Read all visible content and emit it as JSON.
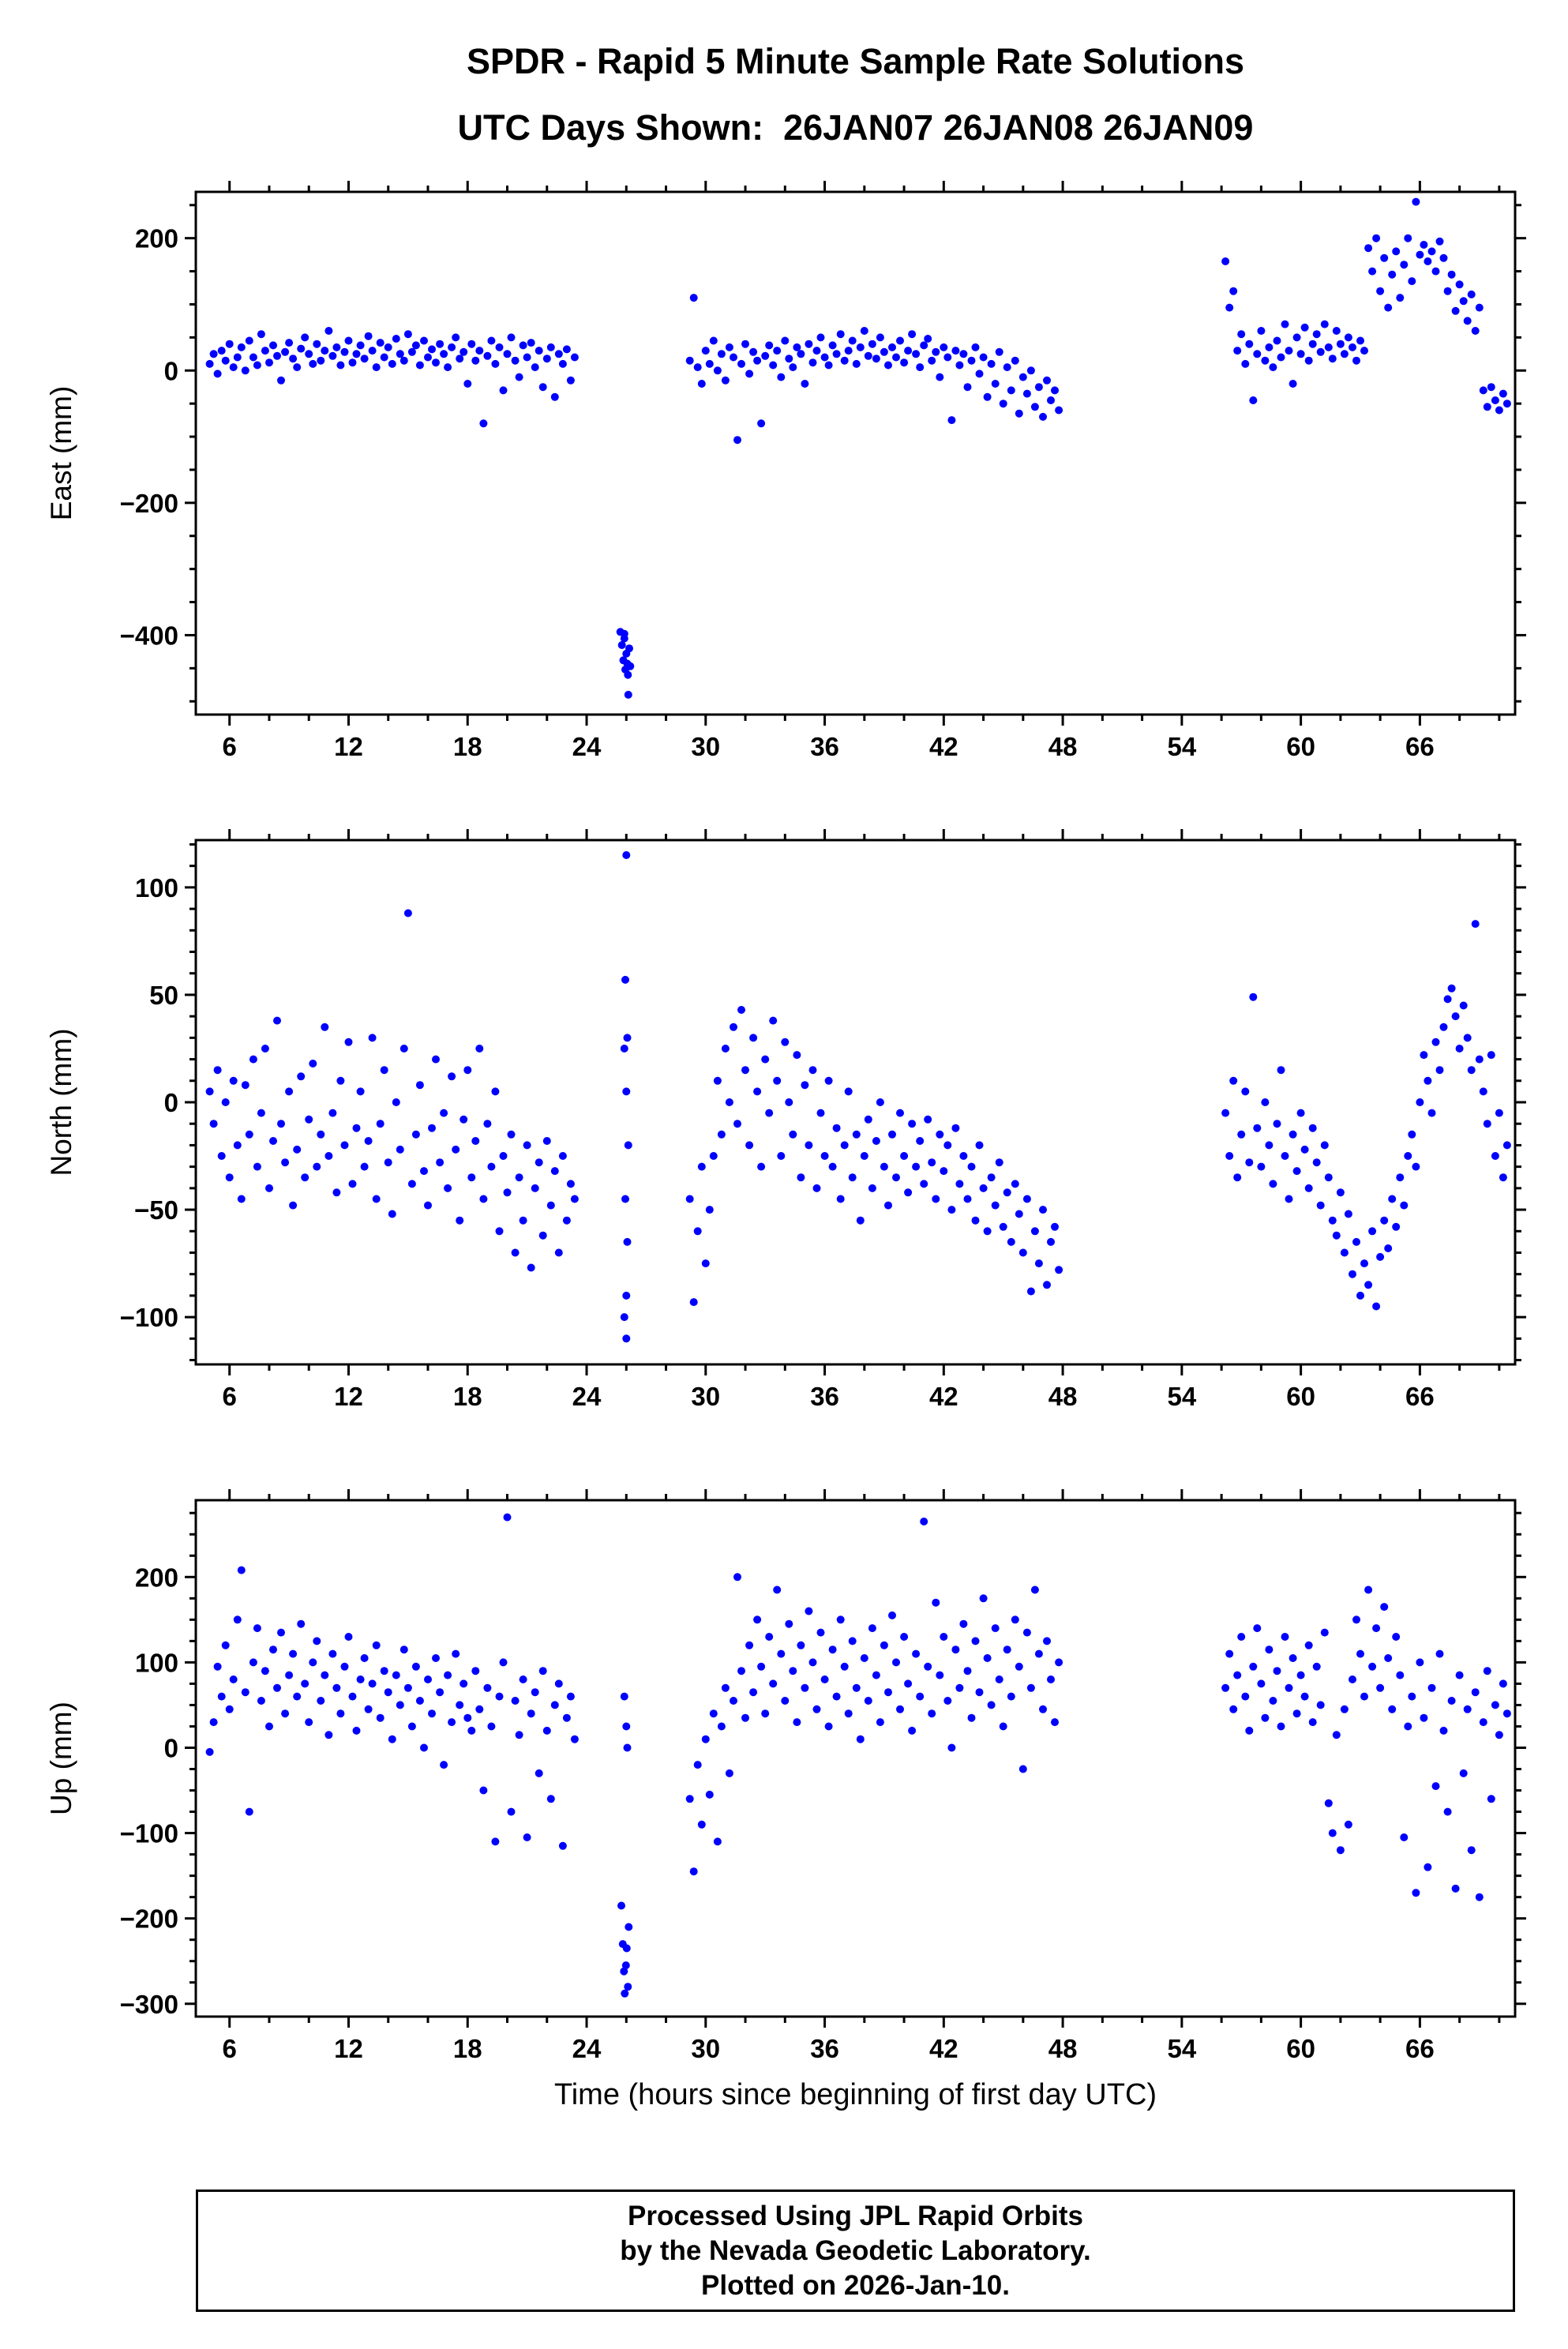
{
  "page": {
    "title": "SPDR - Rapid 5 Minute Sample Rate Solutions",
    "subtitle": "UTC Days Shown:  26JAN07 26JAN08 26JAN09",
    "xlabel": "Time (hours since beginning of first day UTC)",
    "footer": {
      "line1": "Processed Using JPL Rapid Orbits",
      "line2": "by the Nevada Geodetic Laboratory.",
      "line3": "Plotted on 2026-Jan-10."
    },
    "marker_color": "#0000ff",
    "axis_color": "#000000"
  },
  "chart_data": [
    {
      "type": "scatter",
      "name": "east",
      "title": "",
      "ylabel": "East (mm)",
      "xlim": [
        4.3,
        70.8
      ],
      "ylim": [
        -520,
        270
      ],
      "xticks": [
        6,
        12,
        18,
        24,
        30,
        36,
        42,
        48,
        54,
        60,
        66
      ],
      "yticks": [
        200,
        0,
        -200,
        -400
      ],
      "x_minor_step": 2,
      "y_minor_step": 50,
      "grid": false,
      "series_color": "#0000ff",
      "segments": [
        {
          "x0": 5.0,
          "dx": 0.2,
          "y": [
            10,
            25,
            -5,
            30,
            15,
            40,
            5,
            20,
            35,
            0,
            45,
            20,
            8,
            55,
            30,
            12,
            38,
            22,
            -15,
            28,
            42,
            18,
            5,
            33,
            50,
            25,
            10,
            40,
            15,
            30,
            60,
            22,
            35,
            8,
            28,
            45,
            12,
            25,
            38,
            18,
            52,
            30,
            5,
            42,
            20,
            35,
            10,
            48,
            25,
            15,
            55,
            28,
            38,
            8,
            45,
            20,
            32,
            12,
            40,
            25,
            5,
            35,
            50,
            18,
            28,
            -20,
            40,
            15,
            30,
            -80,
            22,
            45,
            10,
            35,
            -30,
            25,
            50,
            15,
            -10,
            38,
            20,
            42,
            5,
            30,
            -25,
            18,
            35,
            -40,
            25,
            10,
            32,
            -15,
            20
          ]
        },
        {
          "x0": 29.2,
          "dx": 0.2,
          "y": [
            15,
            110,
            5,
            -20,
            30,
            10,
            45,
            0,
            25,
            -15,
            35,
            20,
            -105,
            10,
            40,
            -5,
            28,
            15,
            -80,
            22,
            38,
            8,
            30,
            -10,
            45,
            18,
            5,
            35,
            25,
            -20,
            40,
            12,
            30,
            50,
            20,
            8,
            38,
            25,
            55,
            15,
            30,
            45,
            10,
            35,
            60,
            22,
            40,
            18,
            50,
            28,
            8,
            35,
            20,
            45,
            12,
            30,
            55,
            25,
            5,
            38,
            48,
            15,
            28,
            -10,
            35,
            20,
            -75,
            30,
            8,
            25,
            -25,
            15,
            35,
            -5,
            20,
            -40,
            10,
            -20,
            28,
            -50,
            5,
            -30,
            15,
            -65,
            -10,
            -35,
            0,
            -55,
            -25,
            -70,
            -15,
            -45,
            -30,
            -60
          ]
        },
        {
          "x0": 56.2,
          "dx": 0.2,
          "y": [
            165,
            95,
            120,
            30,
            55,
            10,
            40,
            -45,
            25,
            60,
            15,
            35,
            5,
            45,
            20,
            70,
            30,
            -20,
            50,
            25,
            65,
            15,
            40,
            55,
            28,
            70,
            35,
            18,
            60,
            40,
            25,
            50,
            35,
            15,
            45,
            30,
            185,
            150,
            200,
            120,
            170,
            95,
            145,
            180,
            110,
            160,
            200,
            135,
            255,
            175,
            190,
            165,
            180,
            150,
            195,
            170,
            120,
            145,
            90,
            130,
            105,
            75,
            115,
            60,
            95,
            -30,
            -55,
            -25,
            -45,
            -60,
            -35,
            -50
          ]
        }
      ],
      "outliers": [
        [
          25.7,
          -395
        ],
        [
          25.78,
          -415
        ],
        [
          25.85,
          -438
        ],
        [
          25.9,
          -405
        ],
        [
          25.95,
          -452
        ],
        [
          26.0,
          -428
        ],
        [
          26.05,
          -443
        ],
        [
          26.1,
          -490
        ],
        [
          26.15,
          -420
        ],
        [
          26.2,
          -447
        ],
        [
          25.9,
          -398
        ],
        [
          26.08,
          -460
        ]
      ]
    },
    {
      "type": "scatter",
      "name": "north",
      "title": "",
      "ylabel": "North (mm)",
      "xlim": [
        4.3,
        70.8
      ],
      "ylim": [
        -122,
        122
      ],
      "xticks": [
        6,
        12,
        18,
        24,
        30,
        36,
        42,
        48,
        54,
        60,
        66
      ],
      "yticks": [
        100,
        50,
        0,
        -50,
        -100
      ],
      "x_minor_step": 2,
      "y_minor_step": 10,
      "grid": false,
      "series_color": "#0000ff",
      "segments": [
        {
          "x0": 5.0,
          "dx": 0.2,
          "y": [
            5,
            -10,
            15,
            -25,
            0,
            -35,
            10,
            -20,
            -45,
            8,
            -15,
            20,
            -30,
            -5,
            25,
            -40,
            -18,
            38,
            -10,
            -28,
            5,
            -48,
            -22,
            12,
            -35,
            -8,
            18,
            -30,
            -15,
            35,
            -25,
            -5,
            -42,
            10,
            -20,
            28,
            -38,
            -12,
            5,
            -30,
            -18,
            30,
            -45,
            -10,
            15,
            -28,
            -52,
            0,
            -22,
            25,
            88,
            -38,
            -15,
            8,
            -32,
            -48,
            -12,
            20,
            -28,
            -5,
            -40,
            12,
            -22,
            -55,
            -8,
            15,
            -35,
            -18,
            25,
            -45,
            -10,
            -30,
            5,
            -60,
            -25,
            -42,
            -15,
            -70,
            -35,
            -55,
            -20,
            -77,
            -40,
            -28,
            -62,
            -18,
            -48,
            -32,
            -70,
            -25,
            -55,
            -38,
            -45
          ]
        },
        {
          "x0": 29.2,
          "dx": 0.2,
          "y": [
            -45,
            -93,
            -60,
            -30,
            -75,
            -50,
            -25,
            10,
            -15,
            25,
            0,
            35,
            -10,
            43,
            15,
            -20,
            30,
            5,
            -30,
            20,
            -5,
            38,
            10,
            -25,
            28,
            0,
            -15,
            22,
            -35,
            8,
            -20,
            15,
            -40,
            -5,
            -25,
            10,
            -30,
            -12,
            -45,
            -20,
            5,
            -35,
            -15,
            -55,
            -25,
            -8,
            -40,
            -18,
            0,
            -30,
            -48,
            -15,
            -35,
            -5,
            -25,
            -42,
            -10,
            -30,
            -18,
            -38,
            -8,
            -28,
            -45,
            -15,
            -32,
            -20,
            -50,
            -12,
            -38,
            -25,
            -45,
            -30,
            -55,
            -20,
            -40,
            -60,
            -35,
            -48,
            -28,
            -58,
            -42,
            -65,
            -38,
            -52,
            -70,
            -45,
            -88,
            -60,
            -75,
            -50,
            -85,
            -65,
            -58,
            -78
          ]
        },
        {
          "x0": 56.2,
          "dx": 0.2,
          "y": [
            -5,
            -25,
            10,
            -35,
            -15,
            5,
            -28,
            49,
            -12,
            -30,
            0,
            -20,
            -38,
            -10,
            15,
            -25,
            -45,
            -15,
            -32,
            -5,
            -22,
            -40,
            -12,
            -28,
            -48,
            -20,
            -35,
            -55,
            -62,
            -42,
            -70,
            -52,
            -80,
            -65,
            -90,
            -75,
            -85,
            -60,
            -95,
            -72,
            -55,
            -68,
            -45,
            -58,
            -35,
            -48,
            -25,
            -15,
            -30,
            0,
            22,
            10,
            -5,
            28,
            15,
            35,
            48,
            53,
            40,
            25,
            45,
            30,
            15,
            83,
            20,
            5,
            -10,
            22,
            -25,
            -5,
            -35,
            -20
          ]
        }
      ],
      "outliers": [
        [
          26.0,
          115
        ],
        [
          25.95,
          57
        ],
        [
          26.05,
          30
        ],
        [
          25.9,
          25
        ],
        [
          26.0,
          5
        ],
        [
          26.1,
          -20
        ],
        [
          25.95,
          -45
        ],
        [
          26.05,
          -65
        ],
        [
          26.0,
          -90
        ],
        [
          25.9,
          -100
        ],
        [
          26.0,
          -110
        ]
      ]
    },
    {
      "type": "scatter",
      "name": "up",
      "title": "",
      "ylabel": "Up (mm)",
      "xlim": [
        4.3,
        70.8
      ],
      "ylim": [
        -315,
        290
      ],
      "xticks": [
        6,
        12,
        18,
        24,
        30,
        36,
        42,
        48,
        54,
        60,
        66
      ],
      "yticks": [
        200,
        100,
        0,
        -100,
        -200,
        -300
      ],
      "x_minor_step": 2,
      "y_minor_step": 25,
      "grid": false,
      "series_color": "#0000ff",
      "segments": [
        {
          "x0": 5.0,
          "dx": 0.2,
          "y": [
            -5,
            30,
            95,
            60,
            120,
            45,
            80,
            150,
            208,
            65,
            -75,
            100,
            140,
            55,
            90,
            25,
            115,
            70,
            135,
            40,
            85,
            110,
            60,
            145,
            75,
            30,
            100,
            125,
            55,
            85,
            15,
            110,
            70,
            40,
            95,
            130,
            60,
            20,
            80,
            105,
            45,
            75,
            120,
            35,
            90,
            65,
            10,
            85,
            50,
            115,
            70,
            25,
            95,
            55,
            0,
            80,
            40,
            105,
            65,
            -20,
            85,
            30,
            110,
            50,
            75,
            35,
            20,
            90,
            45,
            -50,
            70,
            25,
            -110,
            60,
            100,
            270,
            -75,
            55,
            15,
            80,
            -105,
            40,
            65,
            -30,
            90,
            20,
            -60,
            50,
            75,
            -115,
            35,
            60,
            10
          ]
        },
        {
          "x0": 29.2,
          "dx": 0.2,
          "y": [
            -60,
            -145,
            -20,
            -90,
            10,
            -55,
            40,
            -110,
            25,
            70,
            -30,
            55,
            200,
            90,
            35,
            120,
            65,
            150,
            95,
            40,
            130,
            75,
            185,
            110,
            55,
            145,
            90,
            30,
            120,
            70,
            160,
            100,
            45,
            135,
            80,
            25,
            115,
            60,
            150,
            95,
            40,
            125,
            70,
            10,
            105,
            55,
            140,
            85,
            30,
            120,
            65,
            155,
            100,
            45,
            130,
            75,
            20,
            110,
            60,
            265,
            95,
            40,
            170,
            85,
            130,
            55,
            0,
            115,
            70,
            145,
            90,
            35,
            125,
            65,
            175,
            105,
            50,
            140,
            80,
            25,
            115,
            60,
            150,
            95,
            -25,
            135,
            70,
            185,
            110,
            45,
            125,
            80,
            30,
            100
          ]
        },
        {
          "x0": 56.2,
          "dx": 0.2,
          "y": [
            70,
            110,
            45,
            85,
            130,
            60,
            20,
            95,
            140,
            75,
            35,
            115,
            55,
            90,
            25,
            130,
            70,
            105,
            40,
            85,
            60,
            120,
            30,
            95,
            50,
            135,
            -65,
            -100,
            15,
            -120,
            45,
            -90,
            80,
            150,
            110,
            60,
            185,
            95,
            140,
            70,
            165,
            105,
            45,
            130,
            85,
            -105,
            25,
            60,
            -170,
            100,
            35,
            -140,
            70,
            -45,
            110,
            20,
            -75,
            55,
            -165,
            85,
            -30,
            45,
            -120,
            65,
            -175,
            30,
            90,
            -60,
            50,
            15,
            75,
            40
          ]
        }
      ],
      "outliers": [
        [
          25.75,
          -185
        ],
        [
          25.82,
          -230
        ],
        [
          25.88,
          -262
        ],
        [
          25.92,
          -288
        ],
        [
          25.98,
          -255
        ],
        [
          26.02,
          -235
        ],
        [
          26.08,
          -280
        ],
        [
          26.12,
          -210
        ],
        [
          25.9,
          60
        ],
        [
          26.0,
          25
        ],
        [
          26.05,
          0
        ]
      ]
    }
  ]
}
